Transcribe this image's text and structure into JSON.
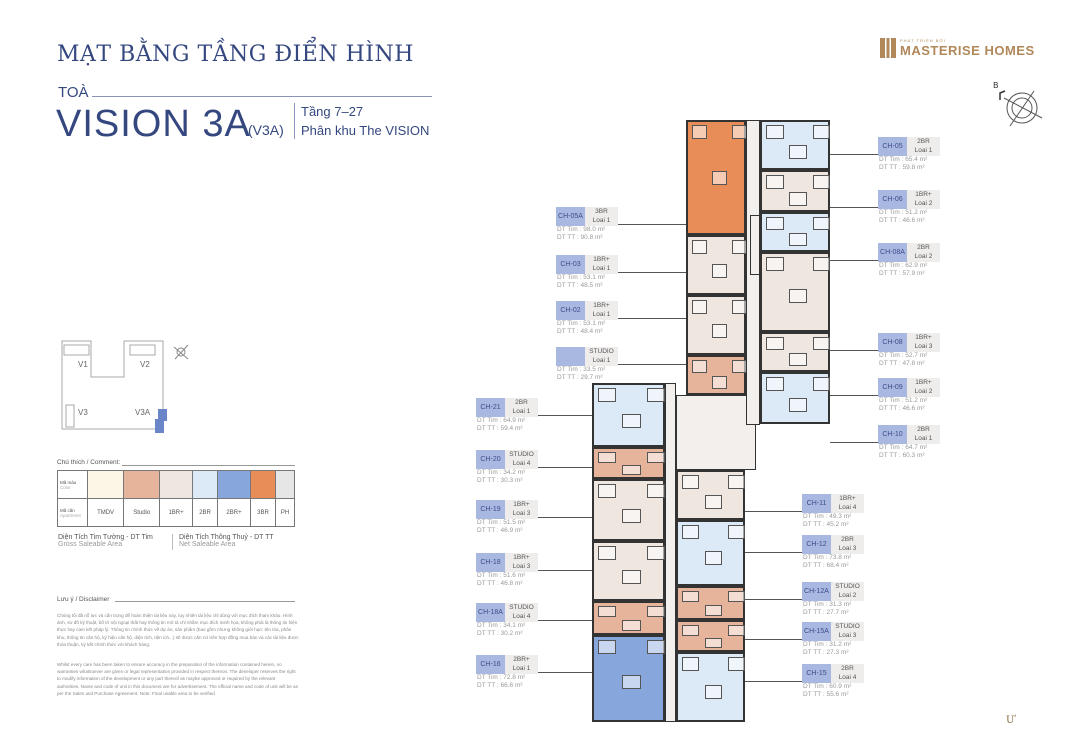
{
  "header": {
    "title": "MẠT BẰNG TẦNG ĐIỂN HÌNH",
    "toa": "TOÀ",
    "tower": "VISION 3A",
    "tower_code": "(V3A)",
    "floors": "Tầng 7–27",
    "zone": "Phân khu The VISION"
  },
  "brand": {
    "tagline": "PHÁT TRIỂN BỞI",
    "name": "MASTERISE HOMES"
  },
  "compass": {
    "north_label": "B"
  },
  "site_map": {
    "towers": [
      "V1",
      "V2",
      "V3",
      "V3A"
    ],
    "highlight": "V3A"
  },
  "legend": {
    "title": "Chú thích / Comment:",
    "color_label": "Mã màu",
    "color_label_en": "Color",
    "apt_label": "Mã căn",
    "apt_label_en": "Apartment",
    "items": [
      {
        "name": "TMDV",
        "color": "#fbf6e6"
      },
      {
        "name": "Studio",
        "color": "#e6b49b"
      },
      {
        "name": "1BR+",
        "color": "#f0e6e0"
      },
      {
        "name": "2BR",
        "color": "#dce9f7"
      },
      {
        "name": "2BR+",
        "color": "#86a6dc"
      },
      {
        "name": "3BR",
        "color": "#e88c58"
      },
      {
        "name": "PH",
        "color": "#e6e6e6"
      }
    ]
  },
  "areas": {
    "gross": "Diện Tích Tim Tường - DT Tim",
    "gross_en": "Gross Saleable Area",
    "net": "Diện Tích Thông Thuỷ - DT TT",
    "net_en": "Net Saleable Area"
  },
  "disclaimer": {
    "title": "Lưu ý / Disclaimer",
    "vi": "Chúng tôi đã nỗ lực và cẩn trọng để hoàn thiện tài liệu này, tuy nhiên tài liệu chỉ dùng với mục đích tham khảo. Hình ảnh, sơ đồ kỹ thuật, bố trí nội ngoại thất hay thông tin mô tả chỉ nhằm mục đích minh họa, không phải là thông tin hiện thực hay cam kết pháp lý. Thông tin chính thức về dự án, sản phẩm (bao gồm nhưng không giới hạn: tên tòa, phân khu, thông tin căn hộ, ký hiệu căn hộ, diện tích, tiện ích...) sẽ được căn cứ trên hợp đồng mua bán và các tài liệu được thỏa thuận, ký kết chính thức với khách hàng.",
    "en": "Whilst every care has been taken to ensure accuracy in the preparation of the information contained herein, no warranties whatsoever are given or legal representation provided in respect thereon. The developer reserves the right to modify information of the development or any part thereof as maybe approved or required by the relevant authorities. Name and code of unit in this document are for advertisement. The official name and code of unit will be as per the Sales and Purchase Agreement. Note: Final usable area to be verified"
  },
  "dt_tim_label": "DT Tim :",
  "dt_tt_label": "DT TT   :",
  "units": [
    {
      "code": "CH-05A",
      "type": "3BR",
      "loai": "Loai 1",
      "dt_tim": "98.0 m²",
      "dt_tt": "90.8 m²"
    },
    {
      "code": "CH-03",
      "type": "1BR+",
      "loai": "Loai 1",
      "dt_tim": "53.1 m²",
      "dt_tt": "48.5 m²"
    },
    {
      "code": "CH-02",
      "type": "1BR+",
      "loai": "Loai 1",
      "dt_tim": "53.1 m²",
      "dt_tt": "48.4 m²"
    },
    {
      "code": "",
      "type": "STUDIO",
      "loai": "Loai 1",
      "dt_tim": "33.5 m²",
      "dt_tt": "29.7 m²"
    },
    {
      "code": "CH-21",
      "type": "2BR",
      "loai": "Loai 1",
      "dt_tim": "64.9 m²",
      "dt_tt": "59.4 m²"
    },
    {
      "code": "CH-20",
      "type": "STUDIO",
      "loai": "Loai 4",
      "dt_tim": "34.2 m²",
      "dt_tt": "30.3 m²"
    },
    {
      "code": "CH-19",
      "type": "1BR+",
      "loai": "Loai 3",
      "dt_tim": "51.5 m²",
      "dt_tt": "46.9 m²"
    },
    {
      "code": "CH-18",
      "type": "1BR+",
      "loai": "Loai 3",
      "dt_tim": "51.6 m²",
      "dt_tt": "46.8 m²"
    },
    {
      "code": "CH-18A",
      "type": "STUDIO",
      "loai": "Loai 4",
      "dt_tim": "34.1 m²",
      "dt_tt": "30.2 m²"
    },
    {
      "code": "CH-16",
      "type": "2BR+",
      "loai": "Loai 1",
      "dt_tim": "72.8 m²",
      "dt_tt": "66.6 m²"
    },
    {
      "code": "CH-05",
      "type": "2BR",
      "loai": "Loai 1",
      "dt_tim": "65.4 m²",
      "dt_tt": "59.8 m²"
    },
    {
      "code": "CH-06",
      "type": "1BR+",
      "loai": "Loai 2",
      "dt_tim": "51.2 m²",
      "dt_tt": "46.6 m²"
    },
    {
      "code": "CH-08A",
      "type": "2BR",
      "loai": "Loai 2",
      "dt_tim": "62.9 m²",
      "dt_tt": "57.9 m²"
    },
    {
      "code": "CH-08",
      "type": "1BR+",
      "loai": "Loai 3",
      "dt_tim": "52.7 m²",
      "dt_tt": "47.8 m²"
    },
    {
      "code": "CH-09",
      "type": "1BR+",
      "loai": "Loai 2",
      "dt_tim": "51.2 m²",
      "dt_tt": "46.6 m²"
    },
    {
      "code": "CH-10",
      "type": "2BR",
      "loai": "Loai 1",
      "dt_tim": "64.7 m²",
      "dt_tt": "60.3 m²"
    },
    {
      "code": "CH-11",
      "type": "1BR+",
      "loai": "Loai 4",
      "dt_tim": "49.3 m²",
      "dt_tt": "45.2 m²"
    },
    {
      "code": "CH-12",
      "type": "2BR",
      "loai": "Loai 3",
      "dt_tim": "73.8 m²",
      "dt_tt": "68.4 m²"
    },
    {
      "code": "CH-12A",
      "type": "STUDIO",
      "loai": "Loai 2",
      "dt_tim": "31.3 m²",
      "dt_tt": "27.7 m²"
    },
    {
      "code": "CH-15A",
      "type": "STUDIO",
      "loai": "Loai 3",
      "dt_tim": "31.2 m²",
      "dt_tt": "27.3 m²"
    },
    {
      "code": "CH-15",
      "type": "2BR",
      "loai": "Loai 4",
      "dt_tim": "60.9 m²",
      "dt_tt": "55.6 m²"
    }
  ]
}
